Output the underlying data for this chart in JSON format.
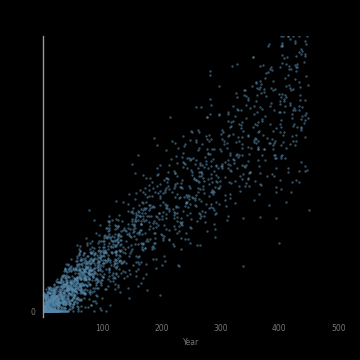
{
  "background_color": "#000000",
  "dot_color": "#5588aa",
  "dot_alpha": 0.6,
  "dot_size": 3,
  "axis_color": "#999999",
  "tick_color": "#777777",
  "tick_label_color": "#777777",
  "tick_fontsize": 5.5,
  "xlabel_color": "#777777",
  "xlabel_fontsize": 5.5,
  "n_points": 2000,
  "seed": 42,
  "x_scale": 450,
  "slope": 0.9,
  "spread_base": 15,
  "spread_scale": 0.18,
  "x_tick_values": [
    100,
    200,
    300,
    400,
    500
  ],
  "y_tick_values": [
    0
  ],
  "bottom_label": "Year",
  "xlim": [
    0,
    500
  ],
  "ylim": [
    -10,
    500
  ]
}
